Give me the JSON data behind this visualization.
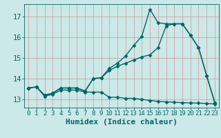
{
  "title": "",
  "xlabel": "Humidex (Indice chaleur)",
  "bg_color": "#cce8e8",
  "grid_color": "#cc9999",
  "line_color": "#006666",
  "xlim": [
    -0.5,
    23.5
  ],
  "ylim": [
    12.6,
    17.6
  ],
  "xticks": [
    0,
    1,
    2,
    3,
    4,
    5,
    6,
    7,
    8,
    9,
    10,
    11,
    12,
    13,
    14,
    15,
    16,
    17,
    18,
    19,
    20,
    21,
    22,
    23
  ],
  "yticks": [
    13,
    14,
    15,
    16,
    17
  ],
  "line1_x": [
    0,
    1,
    2,
    3,
    4,
    5,
    6,
    7,
    8,
    9,
    10,
    11,
    12,
    13,
    14,
    15,
    16,
    17,
    18,
    19,
    20,
    21,
    22,
    23
  ],
  "line1_y": [
    13.55,
    13.6,
    13.15,
    13.25,
    13.45,
    13.45,
    13.45,
    13.35,
    13.35,
    13.35,
    13.1,
    13.1,
    13.05,
    13.05,
    13.0,
    12.95,
    12.9,
    12.88,
    12.86,
    12.84,
    12.83,
    12.82,
    12.8,
    12.78
  ],
  "line2_x": [
    0,
    1,
    2,
    3,
    4,
    5,
    6,
    7,
    8,
    9,
    10,
    11,
    12,
    13,
    14,
    15,
    16,
    17,
    18,
    19,
    20,
    21,
    22,
    23
  ],
  "line2_y": [
    13.55,
    13.6,
    13.2,
    13.3,
    13.55,
    13.55,
    13.55,
    13.4,
    14.0,
    14.05,
    14.4,
    14.6,
    14.75,
    14.9,
    15.05,
    15.15,
    15.5,
    16.55,
    16.65,
    16.65,
    16.1,
    15.5,
    14.15,
    12.85
  ],
  "line3_x": [
    0,
    1,
    2,
    3,
    4,
    5,
    6,
    7,
    8,
    9,
    10,
    11,
    12,
    13,
    14,
    15,
    16,
    17,
    18,
    19,
    20,
    21,
    22,
    23
  ],
  "line3_y": [
    13.55,
    13.6,
    13.2,
    13.3,
    13.55,
    13.55,
    13.55,
    13.4,
    14.0,
    14.05,
    14.5,
    14.75,
    15.1,
    15.6,
    16.05,
    17.35,
    16.7,
    16.65,
    16.65,
    16.65,
    16.1,
    15.5,
    14.15,
    12.85
  ],
  "marker": "D",
  "markersize": 2.5,
  "linewidth": 1.0,
  "xlabel_fontsize": 8,
  "tick_fontsize": 6.5
}
